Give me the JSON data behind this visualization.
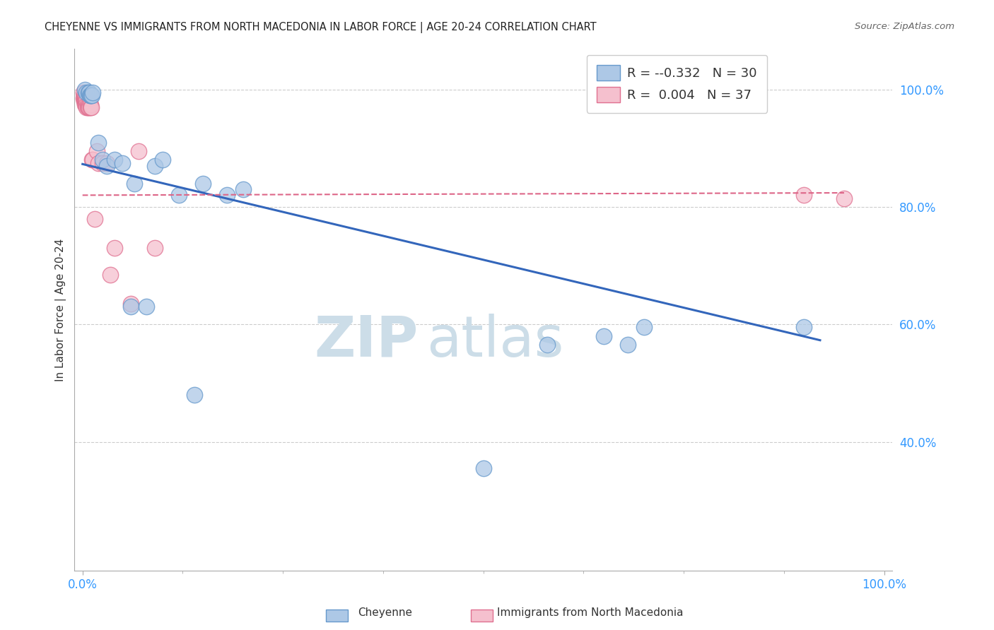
{
  "title": "CHEYENNE VS IMMIGRANTS FROM NORTH MACEDONIA IN LABOR FORCE | AGE 20-24 CORRELATION CHART",
  "source": "Source: ZipAtlas.com",
  "ylabel": "In Labor Force | Age 20-24",
  "ytick_labels": [
    "100.0%",
    "80.0%",
    "60.0%",
    "40.0%"
  ],
  "ytick_values": [
    1.0,
    0.8,
    0.6,
    0.4
  ],
  "xlim": [
    -0.01,
    1.01
  ],
  "ylim": [
    0.18,
    1.07
  ],
  "legend_label1": "Cheyenne",
  "legend_label2": "Immigrants from North Macedonia",
  "legend_R1": "-0.332",
  "legend_N1": "30",
  "legend_R2": "0.004",
  "legend_N2": "37",
  "blue_color": "#adc8e6",
  "blue_edge": "#6699cc",
  "pink_color": "#f5c0ce",
  "pink_edge": "#e07090",
  "trend_blue": "#3366bb",
  "trend_pink": "#dd6688",
  "background": "#ffffff",
  "watermark_zip": "ZIP",
  "watermark_atlas": "atlas",
  "watermark_color": "#ccdde8",
  "grid_color": "#cccccc",
  "axis_color": "#aaaaaa",
  "tick_color": "#3399ff",
  "cheyenne_x": [
    0.003,
    0.005,
    0.007,
    0.008,
    0.009,
    0.01,
    0.011,
    0.012,
    0.013,
    0.02,
    0.025,
    0.03,
    0.04,
    0.05,
    0.065,
    0.09,
    0.1,
    0.15,
    0.2,
    0.06,
    0.08,
    0.12,
    0.18,
    0.58,
    0.65,
    0.68,
    0.7,
    0.14,
    0.5,
    0.9
  ],
  "cheyenne_y": [
    1.0,
    0.995,
    0.995,
    0.995,
    0.99,
    0.99,
    0.99,
    0.99,
    0.995,
    0.91,
    0.88,
    0.87,
    0.88,
    0.875,
    0.84,
    0.87,
    0.88,
    0.84,
    0.83,
    0.63,
    0.63,
    0.82,
    0.82,
    0.565,
    0.58,
    0.565,
    0.595,
    0.48,
    0.355,
    0.595
  ],
  "macedonia_x": [
    0.001,
    0.001,
    0.002,
    0.002,
    0.002,
    0.003,
    0.003,
    0.003,
    0.004,
    0.004,
    0.004,
    0.005,
    0.005,
    0.005,
    0.006,
    0.006,
    0.007,
    0.008,
    0.008,
    0.009,
    0.01,
    0.01,
    0.011,
    0.012,
    0.013,
    0.015,
    0.018,
    0.02,
    0.025,
    0.03,
    0.035,
    0.04,
    0.06,
    0.07,
    0.09,
    0.9,
    0.95
  ],
  "macedonia_y": [
    0.995,
    0.985,
    0.99,
    0.985,
    0.98,
    0.985,
    0.98,
    0.975,
    0.985,
    0.98,
    0.975,
    0.98,
    0.975,
    0.97,
    0.975,
    0.97,
    0.97,
    0.975,
    0.97,
    0.985,
    0.975,
    0.97,
    0.97,
    0.88,
    0.88,
    0.78,
    0.895,
    0.875,
    0.875,
    0.875,
    0.685,
    0.73,
    0.635,
    0.895,
    0.73,
    0.82,
    0.815
  ],
  "blue_trend_x0": 0.0,
  "blue_trend_y0": 0.873,
  "blue_trend_x1": 0.92,
  "blue_trend_y1": 0.573,
  "pink_trend_x0": 0.0,
  "pink_trend_y0": 0.82,
  "pink_trend_x1": 0.95,
  "pink_trend_y1": 0.824
}
